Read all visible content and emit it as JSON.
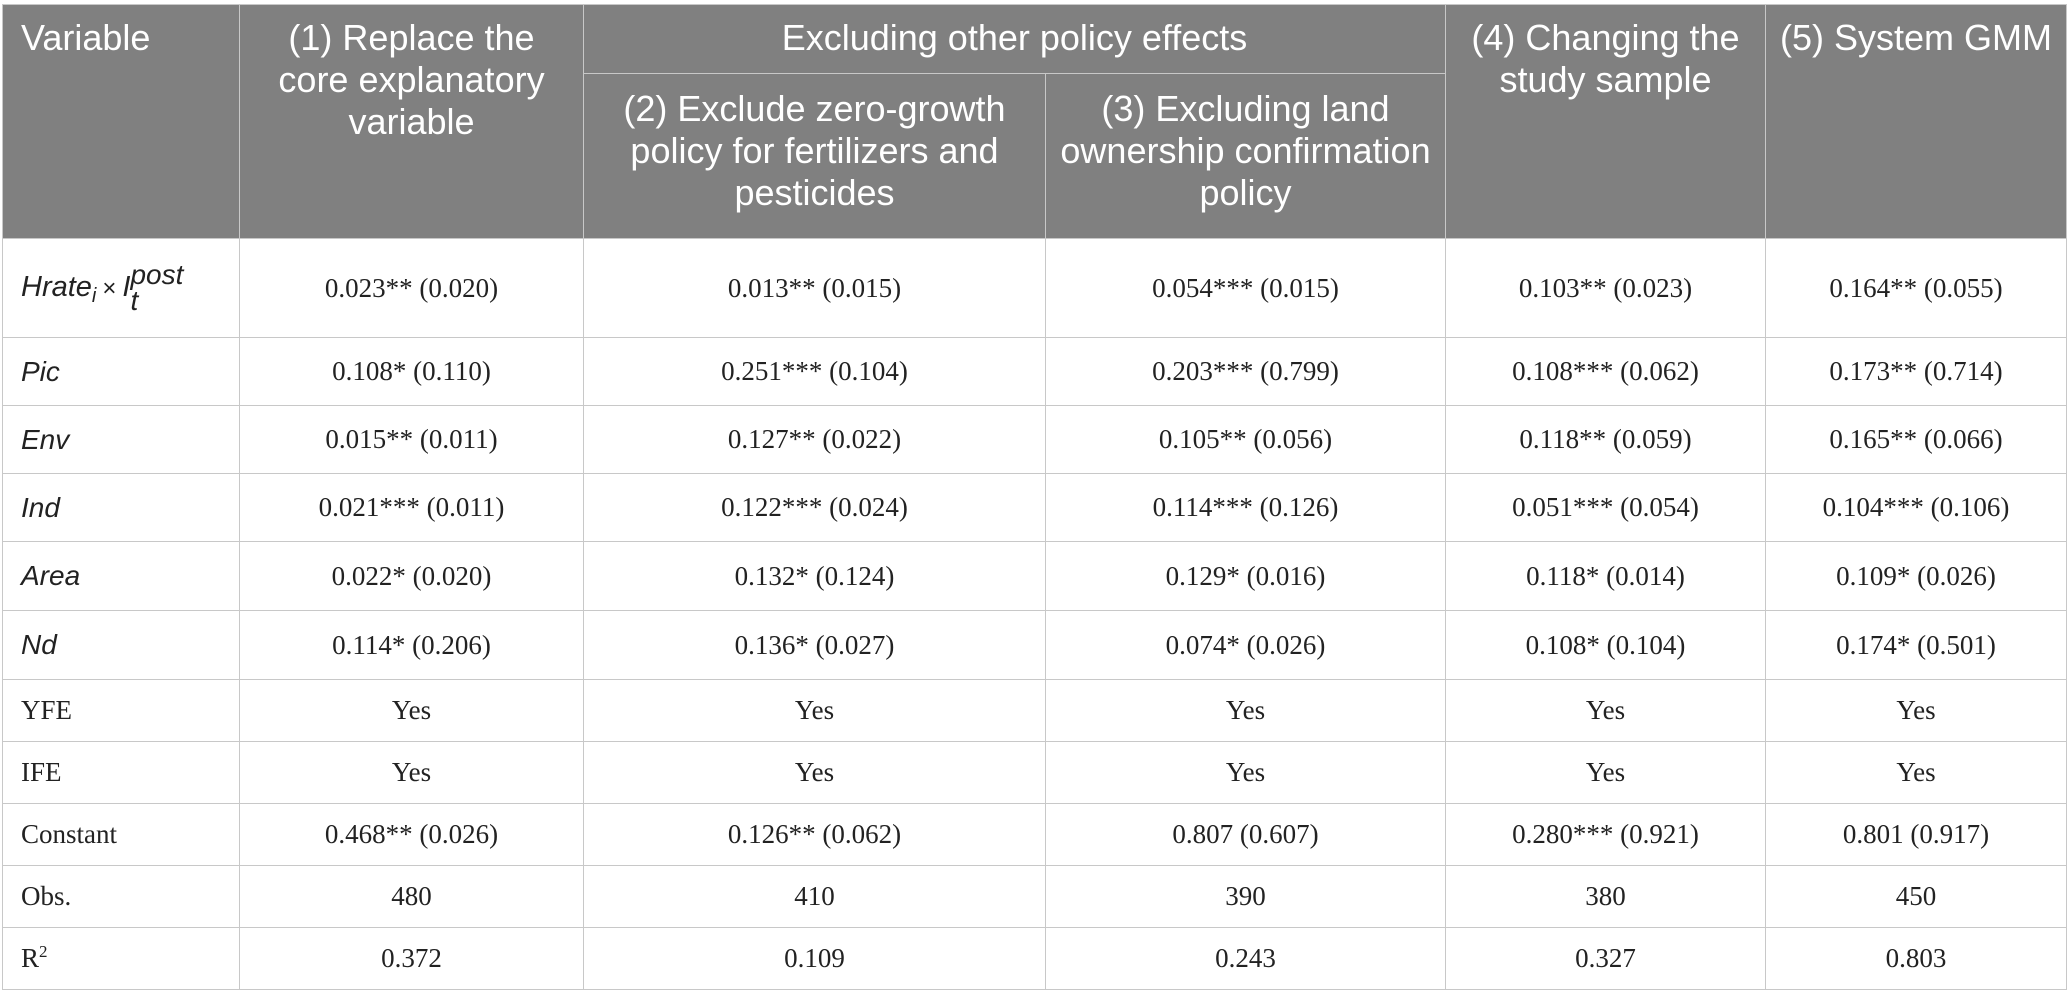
{
  "header": {
    "variable": "Variable",
    "col1": "(1) Replace the core explanatory variable",
    "group": "Excluding other policy effects",
    "col2": "(2) Exclude zero-growth policy for fertilizers and pesticides",
    "col3": "(3) Excluding land ownership confirmation policy",
    "col4": "(4) Changing the study sample",
    "col5": "(5) System GMM"
  },
  "interaction_term": {
    "base": "Hrate",
    "base_sub": "i",
    "times": "×",
    "second": "I",
    "second_sup": "post",
    "second_sub": "t"
  },
  "rows": [
    {
      "label": "",
      "values": [
        "0.023** (0.020)",
        "0.013** (0.015)",
        "0.054*** (0.015)",
        "0.103** (0.023)",
        "0.164** (0.055)"
      ]
    },
    {
      "label": "Pic",
      "values": [
        "0.108* (0.110)",
        "0.251*** (0.104)",
        "0.203*** (0.799)",
        "0.108*** (0.062)",
        "0.173** (0.714)"
      ]
    },
    {
      "label": "Env",
      "values": [
        "0.015** (0.011)",
        "0.127** (0.022)",
        "0.105** (0.056)",
        "0.118** (0.059)",
        "0.165** (0.066)"
      ]
    },
    {
      "label": "Ind",
      "values": [
        "0.021*** (0.011)",
        "0.122*** (0.024)",
        "0.114*** (0.126)",
        "0.051*** (0.054)",
        "0.104*** (0.106)"
      ]
    },
    {
      "label": "Area",
      "values": [
        "0.022* (0.020)",
        "0.132* (0.124)",
        "0.129* (0.016)",
        "0.118* (0.014)",
        "0.109* (0.026)"
      ]
    },
    {
      "label": "Nd",
      "values": [
        "0.114* (0.206)",
        "0.136* (0.027)",
        "0.074* (0.026)",
        "0.108* (0.104)",
        "0.174* (0.501)"
      ]
    },
    {
      "label": "YFE",
      "values": [
        "Yes",
        "Yes",
        "Yes",
        "Yes",
        "Yes"
      ]
    },
    {
      "label": "IFE",
      "values": [
        "Yes",
        "Yes",
        "Yes",
        "Yes",
        "Yes"
      ]
    },
    {
      "label": "Constant",
      "values": [
        "0.468** (0.026)",
        "0.126** (0.062)",
        "0.807 (0.607)",
        "0.280*** (0.921)",
        "0.801 (0.917)"
      ]
    },
    {
      "label": "Obs.",
      "values": [
        "480",
        "410",
        "390",
        "380",
        "450"
      ]
    },
    {
      "label": "R",
      "label_sup": "2",
      "values": [
        "0.372",
        "0.109",
        "0.243",
        "0.327",
        "0.803"
      ]
    }
  ]
}
